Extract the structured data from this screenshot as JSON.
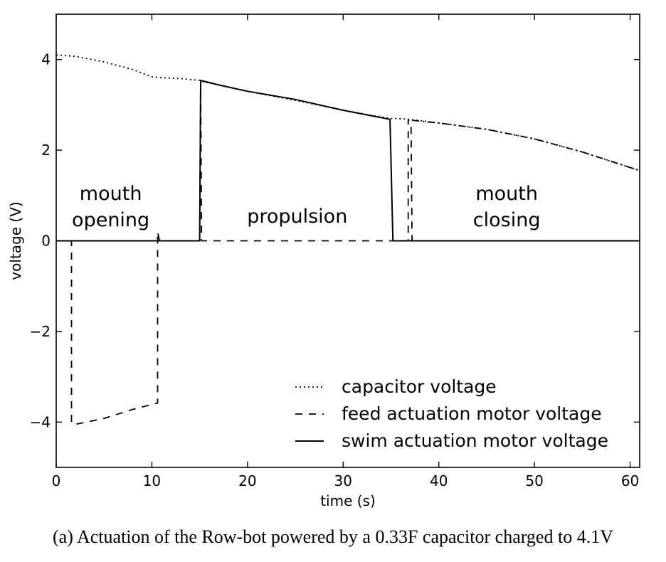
{
  "chart_data": {
    "type": "line",
    "xlabel": "time (s)",
    "ylabel": "voltage (V)",
    "xlim": [
      0,
      61
    ],
    "ylim": [
      -5,
      5
    ],
    "xticks": [
      0,
      10,
      20,
      30,
      40,
      50,
      60
    ],
    "yticks": [
      -4,
      -2,
      0,
      2,
      4
    ],
    "grid": false,
    "legend_position": "lower-right",
    "series": [
      {
        "name": "capacitor voltage",
        "style": "dotted",
        "color": "#000000",
        "points": [
          [
            0,
            4.1
          ],
          [
            2,
            4.07
          ],
          [
            5,
            3.95
          ],
          [
            8,
            3.78
          ],
          [
            10,
            3.62
          ],
          [
            11,
            3.6
          ],
          [
            13,
            3.58
          ],
          [
            15,
            3.54
          ],
          [
            15.2,
            3.52
          ],
          [
            20,
            3.3
          ],
          [
            25,
            3.1
          ],
          [
            30,
            2.88
          ],
          [
            34.9,
            2.7
          ],
          [
            35.5,
            2.7
          ],
          [
            37,
            2.68
          ],
          [
            40,
            2.6
          ],
          [
            45,
            2.46
          ],
          [
            50,
            2.25
          ],
          [
            55,
            1.96
          ],
          [
            61,
            1.55
          ]
        ]
      },
      {
        "name": "feed actuation motor voltage",
        "style": "dashed",
        "color": "#000000",
        "points": [
          [
            0,
            0
          ],
          [
            1.6,
            0
          ],
          [
            1.6,
            -4.02
          ],
          [
            2,
            -4.05
          ],
          [
            5,
            -3.92
          ],
          [
            8,
            -3.72
          ],
          [
            10.6,
            -3.58
          ],
          [
            10.6,
            0.2
          ],
          [
            10.8,
            0
          ],
          [
            15,
            0
          ],
          [
            15.1,
            3.52
          ],
          [
            15.2,
            0
          ],
          [
            36.8,
            0
          ],
          [
            36.8,
            2.68
          ],
          [
            37.1,
            2.55
          ],
          [
            37.2,
            0
          ],
          [
            61,
            0
          ]
        ]
      },
      {
        "name": "swim actuation motor voltage",
        "style": "solid",
        "color": "#000000",
        "points": [
          [
            0,
            0
          ],
          [
            15,
            0
          ],
          [
            15.1,
            3.54
          ],
          [
            17,
            3.44
          ],
          [
            20,
            3.3
          ],
          [
            25,
            3.12
          ],
          [
            30,
            2.88
          ],
          [
            34.9,
            2.68
          ],
          [
            35.2,
            0
          ],
          [
            61,
            0
          ]
        ]
      },
      {
        "name": "",
        "style": "dashdot",
        "color": "#000000",
        "points": [
          [
            37.2,
            2.66
          ],
          [
            40,
            2.6
          ],
          [
            45,
            2.46
          ],
          [
            50,
            2.25
          ],
          [
            55,
            1.96
          ],
          [
            61,
            1.55
          ]
        ]
      }
    ],
    "annotations": [
      {
        "id": "mouth-opening",
        "lines": [
          "mouth",
          "opening"
        ],
        "x": 5.7,
        "y": [
          0.9,
          0.32
        ]
      },
      {
        "id": "propulsion",
        "lines": [
          "propulsion"
        ],
        "x": 25.2,
        "y": [
          0.4
        ]
      },
      {
        "id": "mouth-closing",
        "lines": [
          "mouth",
          "closing"
        ],
        "x": 47.1,
        "y": [
          0.9,
          0.32
        ]
      }
    ]
  },
  "caption": "(a) Actuation of the Row-bot powered by a 0.33F capacitor charged to 4.1V"
}
